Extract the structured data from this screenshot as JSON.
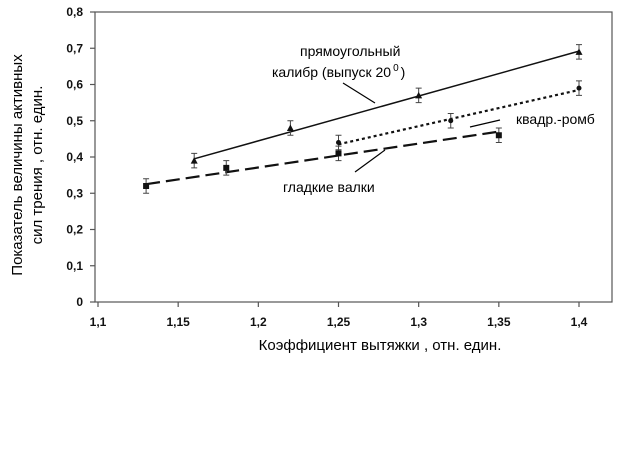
{
  "chart_data": {
    "type": "line",
    "xlabel": "Коэффициент вытяжки , отн. един.",
    "ylabel_line1": "Показатель величины активных",
    "ylabel_line2": "сил трения , отн. един.",
    "xlim": [
      1.1,
      1.4
    ],
    "ylim": [
      0,
      0.8
    ],
    "x_ticks": [
      "1,1",
      "1,15",
      "1,2",
      "1,25",
      "1,3",
      "1,35",
      "1,4"
    ],
    "y_ticks": [
      "0",
      "0,1",
      "0,2",
      "0,3",
      "0,4",
      "0,5",
      "0,6",
      "0,7",
      "0,8"
    ],
    "grid": false,
    "series": [
      {
        "name": "прямоугольный калибр (выпуск 20⁰)",
        "style": "solid",
        "marker": "triangle-up",
        "points": [
          [
            1.16,
            0.39
          ],
          [
            1.22,
            0.48
          ],
          [
            1.3,
            0.57
          ],
          [
            1.4,
            0.69
          ]
        ],
        "errors": [
          0.02,
          0.02,
          0.02,
          0.02
        ],
        "fit": [
          [
            1.16,
            0.395
          ],
          [
            1.4,
            0.692
          ]
        ]
      },
      {
        "name": "квадр.-ромб",
        "style": "dotted",
        "marker": "circle",
        "points": [
          [
            1.25,
            0.44
          ],
          [
            1.32,
            0.5
          ],
          [
            1.4,
            0.59
          ]
        ],
        "errors": [
          0.02,
          0.02,
          0.02
        ],
        "fit": [
          [
            1.25,
            0.435
          ],
          [
            1.4,
            0.585
          ]
        ]
      },
      {
        "name": "гладкие валки",
        "style": "dashed",
        "marker": "square",
        "points": [
          [
            1.13,
            0.32
          ],
          [
            1.18,
            0.37
          ],
          [
            1.25,
            0.41
          ],
          [
            1.35,
            0.46
          ]
        ],
        "errors": [
          0.02,
          0.02,
          0.02,
          0.02
        ],
        "fit": [
          [
            1.13,
            0.325
          ],
          [
            1.35,
            0.47
          ]
        ]
      }
    ],
    "annotations": {
      "rect_line1": "прямоугольный",
      "rect_line2": "калибр (выпуск 20",
      "rect_sup": "0",
      "rect_close": ")",
      "rhomb": "квадр.-ромб",
      "smooth": "гладкие валки"
    }
  }
}
